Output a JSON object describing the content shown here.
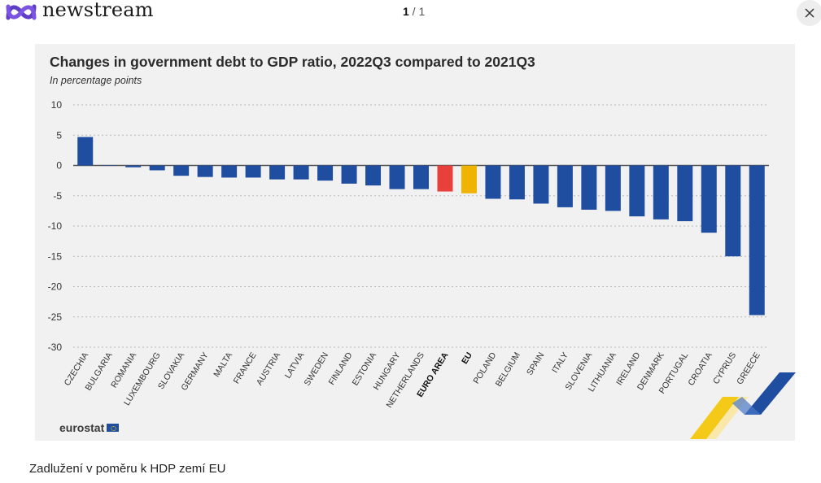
{
  "header": {
    "brand": "newstream",
    "counter_current": "1",
    "counter_sep": " / ",
    "counter_total": "1"
  },
  "icons": {
    "logo": "newstream-logo-icon",
    "close": "close-icon",
    "flag": "eu-flag-icon"
  },
  "colors": {
    "bar": "#1f4ea1",
    "euro_area": "#e8403a",
    "eu": "#f0b400",
    "card_bg": "#f1f1f1",
    "grid": "#b9b9b9"
  },
  "caption": "Zadlužení v poměru k HDP zemí EU",
  "source": "eurostat",
  "chart_data": {
    "type": "bar",
    "title": "Changes in government debt to GDP ratio, 2022Q3 compared to 2021Q3",
    "subtitle": "In percentage points",
    "xlabel": "",
    "ylabel": "",
    "ylim": [
      -30,
      10
    ],
    "yticks": [
      10,
      5,
      0,
      -5,
      -10,
      -15,
      -20,
      -25,
      -30
    ],
    "grid": true,
    "categories": [
      "CZECHIA",
      "BULGARIA",
      "ROMANIA",
      "LUXEMBOURG",
      "SLOVAKIA",
      "GERMANY",
      "MALTA",
      "FRANCE",
      "AUSTRIA",
      "LATVIA",
      "SWEDEN",
      "FINLAND",
      "ESTONIA",
      "HUNGARY",
      "NETHERLANDS",
      "EURO AREA",
      "EU",
      "POLAND",
      "BELGIUM",
      "SPAIN",
      "ITALY",
      "SLOVENIA",
      "LITHUANIA",
      "IRELAND",
      "DENMARK",
      "PORTUGAL",
      "CROATIA",
      "CYPRUS",
      "GREECE"
    ],
    "values": [
      4.7,
      0.0,
      -0.3,
      -0.8,
      -1.7,
      -1.9,
      -2.0,
      -2.0,
      -2.3,
      -2.3,
      -2.5,
      -3.0,
      -3.3,
      -3.9,
      -3.9,
      -4.3,
      -4.6,
      -5.5,
      -5.6,
      -6.3,
      -6.9,
      -7.3,
      -7.5,
      -8.4,
      -8.9,
      -9.2,
      -11.1,
      -15.0,
      -24.7
    ],
    "highlight": {
      "EURO AREA": "euro_area",
      "EU": "eu"
    },
    "bold_labels": [
      "EURO AREA",
      "EU"
    ]
  }
}
